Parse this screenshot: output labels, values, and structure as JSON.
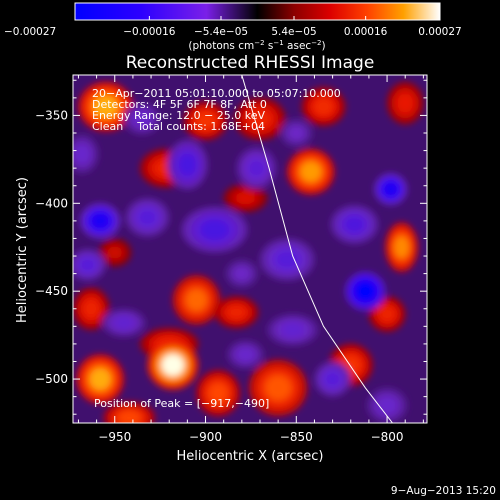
{
  "chart_data": {
    "type": "heatmap",
    "title": "Reconstructed RHESSI Image",
    "xlabel": "Heliocentric X (arcsec)",
    "ylabel": "Heliocentric Y (arcsec)",
    "xlim": [
      -973,
      -778
    ],
    "ylim": [
      -525,
      -327
    ],
    "x_ticks": [
      {
        "value": -950,
        "label": "−950"
      },
      {
        "value": -900,
        "label": "−900"
      },
      {
        "value": -850,
        "label": "−850"
      },
      {
        "value": -800,
        "label": "−800"
      }
    ],
    "y_ticks": [
      {
        "value": -350,
        "label": "−350"
      },
      {
        "value": -400,
        "label": "−400"
      },
      {
        "value": -450,
        "label": "−450"
      },
      {
        "value": -500,
        "label": "−500"
      }
    ],
    "colorbar": {
      "range": [
        -0.00027,
        0.00027
      ],
      "ticks": [
        {
          "value": -0.00027,
          "label": "−0.00027"
        },
        {
          "value": -0.00016,
          "label": "−0.00016"
        },
        {
          "value": -5.4e-05,
          "label": "−5.4e−05"
        },
        {
          "value": 5.4e-05,
          "label": "5.4e−05"
        },
        {
          "value": 0.00016,
          "label": "0.00016"
        },
        {
          "value": 0.00027,
          "label": "0.00027"
        }
      ],
      "unit_main": "(photons cm",
      "unit_sup1": "−2",
      "unit_mid": " s",
      "unit_sup2": "−1",
      "unit_mid2": " asec",
      "unit_sup3": "−2",
      "unit_end": ")"
    },
    "info_lines": [
      "20−Apr−2011 05:01:10.000 to 05:07:10.000",
      "Detectors: 4F 5F 6F 7F 8F, Att 0",
      "Energy Range: 12.0 − 25.0 keV",
      "Clean    Total counts: 1.68E+04"
    ],
    "peak_label": "Position of Peak = [−917,−490]",
    "peak_position": [
      -917,
      -490
    ],
    "limb_curve": [
      [
        -880,
        -327
      ],
      [
        -865,
        -380
      ],
      [
        -852,
        -430
      ],
      [
        -835,
        -470
      ],
      [
        -812,
        -505
      ],
      [
        -797,
        -525
      ]
    ],
    "blobs": [
      {
        "x": -955,
        "y": -345,
        "v": 0.00022,
        "rx": 15,
        "ry": 14
      },
      {
        "x": -900,
        "y": -353,
        "v": 0.00014,
        "rx": 12,
        "ry": 11
      },
      {
        "x": -922,
        "y": -380,
        "v": 0.00012,
        "rx": 14,
        "ry": 11
      },
      {
        "x": -870,
        "y": -352,
        "v": 0.00012,
        "rx": 14,
        "ry": 12
      },
      {
        "x": -835,
        "y": -345,
        "v": 0.00013,
        "rx": 12,
        "ry": 11
      },
      {
        "x": -790,
        "y": -343,
        "v": 0.00011,
        "rx": 10,
        "ry": 12
      },
      {
        "x": -842,
        "y": -382,
        "v": 0.00021,
        "rx": 13,
        "ry": 13
      },
      {
        "x": -878,
        "y": -397,
        "v": 9e-05,
        "rx": 12,
        "ry": 8
      },
      {
        "x": -792,
        "y": -425,
        "v": 0.0002,
        "rx": 9,
        "ry": 14
      },
      {
        "x": -963,
        "y": -460,
        "v": 0.00012,
        "rx": 10,
        "ry": 12
      },
      {
        "x": -950,
        "y": -428,
        "v": 8e-05,
        "rx": 9,
        "ry": 8
      },
      {
        "x": -905,
        "y": -455,
        "v": 0.00018,
        "rx": 13,
        "ry": 14
      },
      {
        "x": -920,
        "y": -480,
        "v": 0.00012,
        "rx": 16,
        "ry": 9
      },
      {
        "x": -883,
        "y": -462,
        "v": 0.00012,
        "rx": 12,
        "ry": 9
      },
      {
        "x": -800,
        "y": -463,
        "v": 0.00012,
        "rx": 10,
        "ry": 10
      },
      {
        "x": -918,
        "y": -492,
        "v": 0.00027,
        "rx": 14,
        "ry": 14
      },
      {
        "x": -958,
        "y": -500,
        "v": 0.00022,
        "rx": 13,
        "ry": 14
      },
      {
        "x": -893,
        "y": -508,
        "v": 0.00016,
        "rx": 12,
        "ry": 13
      },
      {
        "x": -860,
        "y": -505,
        "v": 0.00017,
        "rx": 16,
        "ry": 16
      },
      {
        "x": -820,
        "y": -492,
        "v": 0.00014,
        "rx": 12,
        "ry": 12
      },
      {
        "x": -942,
        "y": -522,
        "v": 0.00016,
        "rx": 14,
        "ry": 9
      },
      {
        "x": -968,
        "y": -372,
        "v": -9e-05,
        "rx": 9,
        "ry": 11
      },
      {
        "x": -958,
        "y": -410,
        "v": -0.00022,
        "rx": 11,
        "ry": 10
      },
      {
        "x": -965,
        "y": -435,
        "v": -0.00012,
        "rx": 10,
        "ry": 9
      },
      {
        "x": -932,
        "y": -408,
        "v": -0.00012,
        "rx": 12,
        "ry": 11
      },
      {
        "x": -895,
        "y": -415,
        "v": -0.00014,
        "rx": 18,
        "ry": 13
      },
      {
        "x": -910,
        "y": -378,
        "v": -0.00014,
        "rx": 11,
        "ry": 14
      },
      {
        "x": -872,
        "y": -380,
        "v": -0.00011,
        "rx": 11,
        "ry": 12
      },
      {
        "x": -855,
        "y": -432,
        "v": -0.00012,
        "rx": 15,
        "ry": 12
      },
      {
        "x": -818,
        "y": -412,
        "v": -0.00013,
        "rx": 13,
        "ry": 11
      },
      {
        "x": -798,
        "y": -392,
        "v": -0.00022,
        "rx": 9,
        "ry": 9
      },
      {
        "x": -812,
        "y": -450,
        "v": -0.00027,
        "rx": 11,
        "ry": 11
      },
      {
        "x": -852,
        "y": -472,
        "v": -0.0001,
        "rx": 14,
        "ry": 9
      },
      {
        "x": -830,
        "y": -500,
        "v": -0.00012,
        "rx": 10,
        "ry": 10
      },
      {
        "x": -945,
        "y": -468,
        "v": -0.0001,
        "rx": 12,
        "ry": 8
      },
      {
        "x": -878,
        "y": -486,
        "v": -9e-05,
        "rx": 10,
        "ry": 8
      },
      {
        "x": -800,
        "y": -515,
        "v": -9e-05,
        "rx": 11,
        "ry": 10
      },
      {
        "x": -935,
        "y": -352,
        "v": -9e-05,
        "rx": 10,
        "ry": 9
      },
      {
        "x": -850,
        "y": -360,
        "v": -8e-05,
        "rx": 9,
        "ry": 8
      },
      {
        "x": -880,
        "y": -440,
        "v": -8e-05,
        "rx": 9,
        "ry": 8
      }
    ]
  },
  "footer": {
    "timestamp": "9−Aug−2013 15:20"
  }
}
